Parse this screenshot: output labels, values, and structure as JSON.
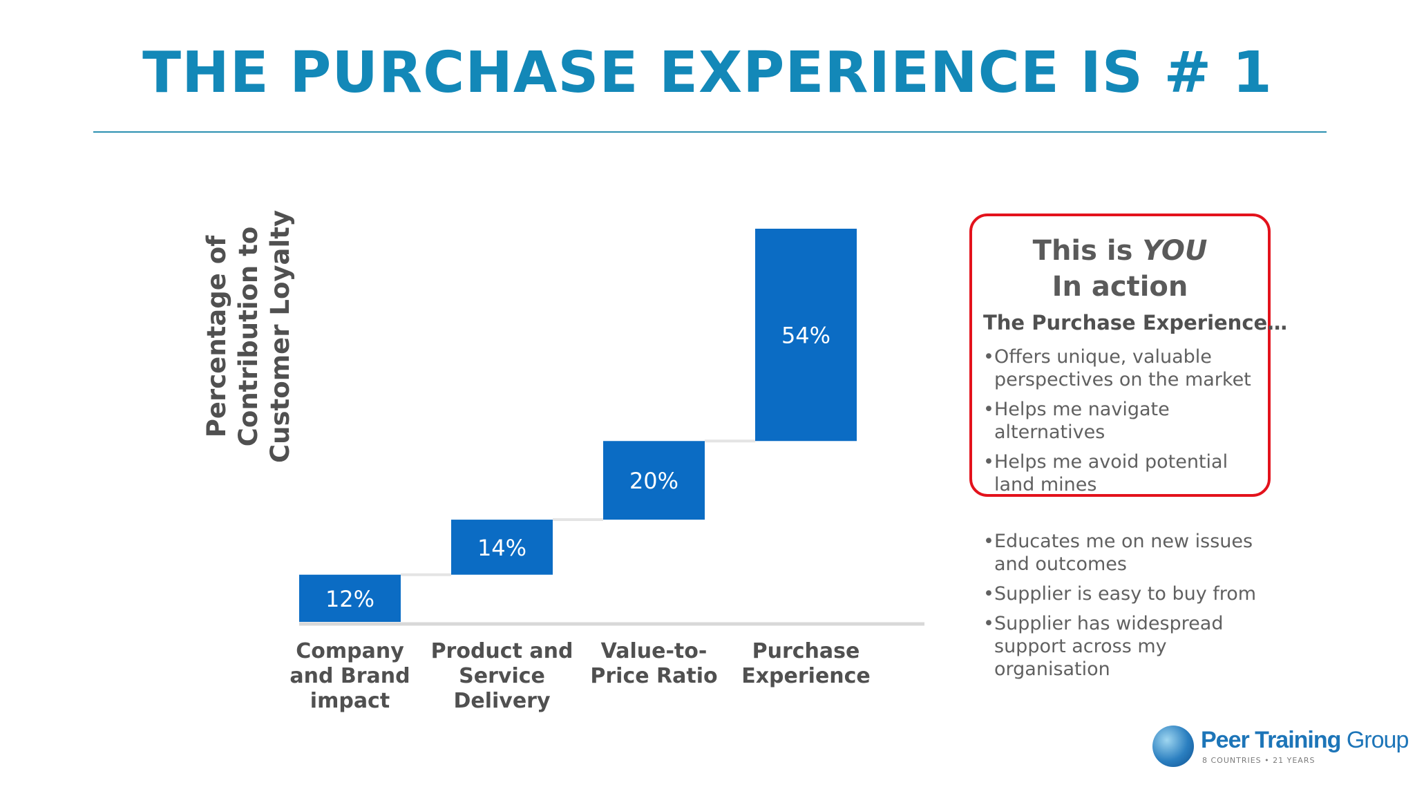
{
  "title": "THE PURCHASE EXPERIENCE IS # 1",
  "callout": {
    "heading_line1_prefix": "This is ",
    "heading_line1_emphasis": "YOU",
    "heading_line2": "In action",
    "subheading": "The Purchase Experience…",
    "items": [
      "Offers unique, valuable perspectives on the market",
      "Helps me navigate alternatives",
      "Helps me avoid potential land mines"
    ]
  },
  "extra_items": [
    "Educates me on new issues and outcomes",
    "Supplier is easy to buy from",
    "Supplier has widespread support across my organisation"
  ],
  "logo": {
    "name_bold": "Peer Training",
    "name_rest": " Group",
    "tagline": "8 COUNTRIES • 21 YEARS"
  },
  "colors": {
    "title": "#1388b8",
    "bar": "#0b6cc4",
    "callout_border": "#e3121c"
  },
  "chart_data": {
    "type": "bar",
    "subtype": "waterfall",
    "ylabel": "Percentage of Contribution to Customer Loyalty",
    "xlabel": "",
    "categories": [
      "Company and Brand impact",
      "Product and Service Delivery",
      "Value-to-Price Ratio",
      "Purchase Experience"
    ],
    "values": [
      12,
      14,
      20,
      54
    ],
    "data_labels": [
      "12%",
      "14%",
      "20%",
      "54%"
    ],
    "cumulative_total": 100,
    "ylim": [
      0,
      100
    ],
    "grid": false,
    "legend": "none"
  }
}
